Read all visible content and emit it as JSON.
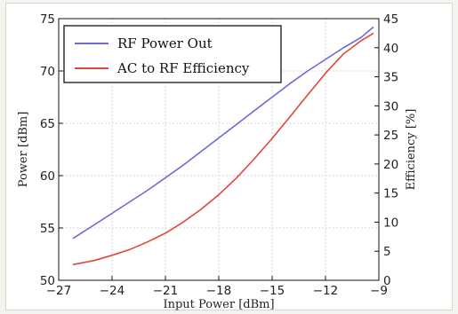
{
  "chart_data": {
    "type": "line",
    "xlabel": "Input Power [dBm]",
    "ylabel": "Power [dBm]",
    "y2label": "Efficiency [%]",
    "xlim": [
      -27,
      -9
    ],
    "ylim": [
      50,
      75
    ],
    "y2lim": [
      0,
      45
    ],
    "xticks": [
      "−27",
      "−24",
      "−21",
      "−18",
      "−15",
      "−12",
      "−9"
    ],
    "xtick_values": [
      -27,
      -24,
      -21,
      -18,
      -15,
      -12,
      -9
    ],
    "yticks": [
      "50",
      "55",
      "60",
      "65",
      "70",
      "75"
    ],
    "ytick_values": [
      50,
      55,
      60,
      65,
      70,
      75
    ],
    "y2ticks": [
      "0",
      "5",
      "10",
      "15",
      "20",
      "25",
      "30",
      "35",
      "40",
      "45"
    ],
    "y2tick_values": [
      0,
      5,
      10,
      15,
      20,
      25,
      30,
      35,
      40,
      45
    ],
    "grid": true,
    "legend_position": "top-left",
    "series": [
      {
        "name": "RF Power Out",
        "axis": "left",
        "color": "#6b6bd6",
        "x": [
          -26.2,
          -25,
          -24,
          -23,
          -22,
          -21,
          -20,
          -19,
          -18,
          -17,
          -16,
          -15,
          -14,
          -13,
          -12,
          -11,
          -10,
          -9.3
        ],
        "y": [
          54.0,
          55.3,
          56.4,
          57.5,
          58.6,
          59.8,
          61.0,
          62.3,
          63.6,
          64.9,
          66.2,
          67.5,
          68.8,
          70.0,
          71.1,
          72.2,
          73.2,
          74.2
        ]
      },
      {
        "name": "AC to RF Efficiency",
        "axis": "right",
        "color": "#e0463a",
        "x": [
          -26.2,
          -25,
          -24,
          -23,
          -22,
          -21,
          -20,
          -19,
          -18,
          -17,
          -16,
          -15,
          -14,
          -13,
          -12,
          -11,
          -10,
          -9.3
        ],
        "y": [
          2.7,
          3.4,
          4.3,
          5.3,
          6.6,
          8.1,
          10.0,
          12.2,
          14.7,
          17.6,
          20.9,
          24.4,
          28.1,
          31.9,
          35.6,
          38.9,
          41.2,
          42.5
        ]
      }
    ]
  }
}
